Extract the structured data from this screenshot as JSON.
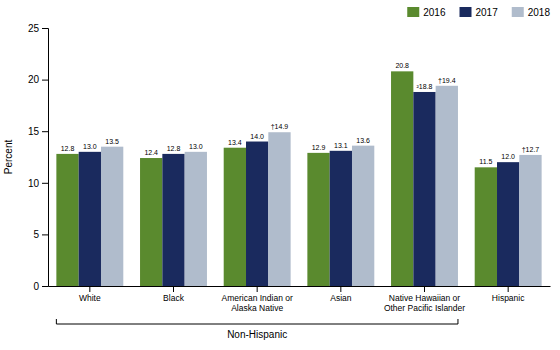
{
  "chart_data": {
    "type": "bar",
    "categories": [
      "White",
      "Black",
      "American Indian or\nAlaska Native",
      "Asian",
      "Native Hawaiian or\nOther Pacific Islander",
      "Hispanic"
    ],
    "series": [
      {
        "name": "2016",
        "color": "#5a8a2e",
        "values": [
          12.8,
          12.4,
          13.4,
          12.9,
          20.8,
          11.5
        ],
        "value_labels": [
          "12.8",
          "12.4",
          "13.4",
          "12.9",
          "20.8",
          "11.5"
        ]
      },
      {
        "name": "2017",
        "color": "#1a2a5e",
        "values": [
          13.0,
          12.8,
          14.0,
          13.1,
          18.8,
          12.0
        ],
        "value_labels": [
          "13.0",
          "12.8",
          "14.0",
          "13.1",
          "²18.8",
          "12.0"
        ]
      },
      {
        "name": "2018",
        "color": "#b0bccc",
        "values": [
          13.5,
          13.0,
          14.9,
          13.6,
          19.4,
          12.7
        ],
        "value_labels": [
          "13.5",
          "13.0",
          "†14.9",
          "13.6",
          "†19.4",
          "†12.7"
        ]
      }
    ],
    "ylabel": "Percent",
    "ylim": [
      0,
      25
    ],
    "yticks": [
      0,
      5,
      10,
      15,
      20,
      25
    ],
    "grid": false,
    "legend": "upper right",
    "data_labels": true,
    "annotation": "Non-Hispanic"
  }
}
